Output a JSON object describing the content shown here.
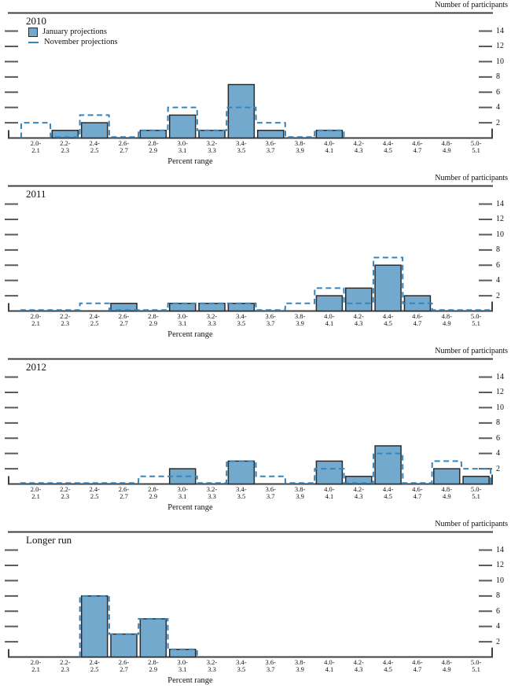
{
  "page": {
    "right_axis_label": "Number of participants",
    "x_axis_label": "Percent range",
    "y_ticks": [
      2,
      4,
      6,
      8,
      10,
      12,
      14
    ]
  },
  "legend": {
    "january_label": "January projections",
    "november_label": "November projections"
  },
  "colors": {
    "bar_fill": "#74a9ce",
    "bar_stroke": "#2b2b2b",
    "dash": "#3585bd",
    "axis": "#3f3f3f",
    "tick": "#5a5a5a",
    "text": "#111111"
  },
  "chart_data": [
    {
      "type": "bar",
      "title": "2010",
      "xlabel": "Percent range",
      "ylabel": "Number of participants",
      "ylim": [
        0,
        15
      ],
      "yticks": [
        2,
        4,
        6,
        8,
        10,
        12,
        14
      ],
      "grid": false,
      "legend_position": "top-left",
      "categories": [
        "2.0-2.1",
        "2.2-2.3",
        "2.4-2.5",
        "2.6-2.7",
        "2.8-2.9",
        "3.0-3.1",
        "3.2-3.3",
        "3.4-3.5",
        "3.6-3.7",
        "3.8-3.9",
        "4.0-4.1",
        "4.2-4.3",
        "4.4-4.5",
        "4.6-4.7",
        "4.8-4.9",
        "5.0-5.1"
      ],
      "series": [
        {
          "name": "January projections",
          "style": "solid-bar",
          "values": [
            0,
            1,
            2,
            0,
            1,
            3,
            1,
            7,
            1,
            0,
            1,
            0,
            0,
            0,
            0,
            0
          ]
        },
        {
          "name": "November projections",
          "style": "dashed-step-outline",
          "span": "nonzero",
          "values": [
            2,
            0,
            3,
            0,
            1,
            4,
            1,
            4,
            2,
            0,
            1,
            0,
            0,
            0,
            0,
            0
          ]
        }
      ]
    },
    {
      "type": "bar",
      "title": "2011",
      "xlabel": "Percent range",
      "ylabel": "Number of participants",
      "ylim": [
        0,
        15
      ],
      "yticks": [
        2,
        4,
        6,
        8,
        10,
        12,
        14
      ],
      "grid": false,
      "categories": [
        "2.0-2.1",
        "2.2-2.3",
        "2.4-2.5",
        "2.6-2.7",
        "2.8-2.9",
        "3.0-3.1",
        "3.2-3.3",
        "3.4-3.5",
        "3.6-3.7",
        "3.8-3.9",
        "4.0-4.1",
        "4.2-4.3",
        "4.4-4.5",
        "4.6-4.7",
        "4.8-4.9",
        "5.0-5.1"
      ],
      "series": [
        {
          "name": "January projections",
          "style": "solid-bar",
          "values": [
            0,
            0,
            0,
            1,
            0,
            1,
            1,
            1,
            0,
            0,
            2,
            3,
            6,
            2,
            0,
            0
          ]
        },
        {
          "name": "November projections",
          "style": "dashed-step-outline",
          "span": "full",
          "values": [
            0,
            0,
            1,
            0,
            0,
            1,
            1,
            1,
            0,
            1,
            3,
            1,
            7,
            1,
            0,
            0
          ]
        }
      ]
    },
    {
      "type": "bar",
      "title": "2012",
      "xlabel": "Percent range",
      "ylabel": "Number of participants",
      "ylim": [
        0,
        15
      ],
      "yticks": [
        2,
        4,
        6,
        8,
        10,
        12,
        14
      ],
      "grid": false,
      "categories": [
        "2.0-2.1",
        "2.2-2.3",
        "2.4-2.5",
        "2.6-2.7",
        "2.8-2.9",
        "3.0-3.1",
        "3.2-3.3",
        "3.4-3.5",
        "3.6-3.7",
        "3.8-3.9",
        "4.0-4.1",
        "4.2-4.3",
        "4.4-4.5",
        "4.6-4.7",
        "4.8-4.9",
        "5.0-5.1"
      ],
      "series": [
        {
          "name": "January projections",
          "style": "solid-bar",
          "values": [
            0,
            0,
            0,
            0,
            0,
            2,
            0,
            3,
            0,
            0,
            3,
            1,
            5,
            0,
            2,
            1
          ]
        },
        {
          "name": "November projections",
          "style": "dashed-step-outline",
          "span": "full",
          "values": [
            0,
            0,
            0,
            0,
            1,
            1,
            0,
            3,
            1,
            0,
            2,
            0,
            4,
            0,
            3,
            2
          ]
        }
      ]
    },
    {
      "type": "bar",
      "title": "Longer run",
      "xlabel": "Percent range",
      "ylabel": "Number of participants",
      "ylim": [
        0,
        15
      ],
      "yticks": [
        2,
        4,
        6,
        8,
        10,
        12,
        14
      ],
      "grid": false,
      "categories": [
        "2.0-2.1",
        "2.2-2.3",
        "2.4-2.5",
        "2.6-2.7",
        "2.8-2.9",
        "3.0-3.1",
        "3.2-3.3",
        "3.4-3.5",
        "3.6-3.7",
        "3.8-3.9",
        "4.0-4.1",
        "4.2-4.3",
        "4.4-4.5",
        "4.6-4.7",
        "4.8-4.9",
        "5.0-5.1"
      ],
      "series": [
        {
          "name": "January projections",
          "style": "solid-bar",
          "values": [
            0,
            0,
            8,
            3,
            5,
            1,
            0,
            0,
            0,
            0,
            0,
            0,
            0,
            0,
            0,
            0
          ]
        },
        {
          "name": "November projections",
          "style": "dashed-step-outline",
          "span": "nonzero",
          "values": [
            0,
            0,
            8,
            3,
            5,
            1,
            0,
            0,
            0,
            0,
            0,
            0,
            0,
            0,
            0,
            0
          ]
        }
      ]
    }
  ]
}
